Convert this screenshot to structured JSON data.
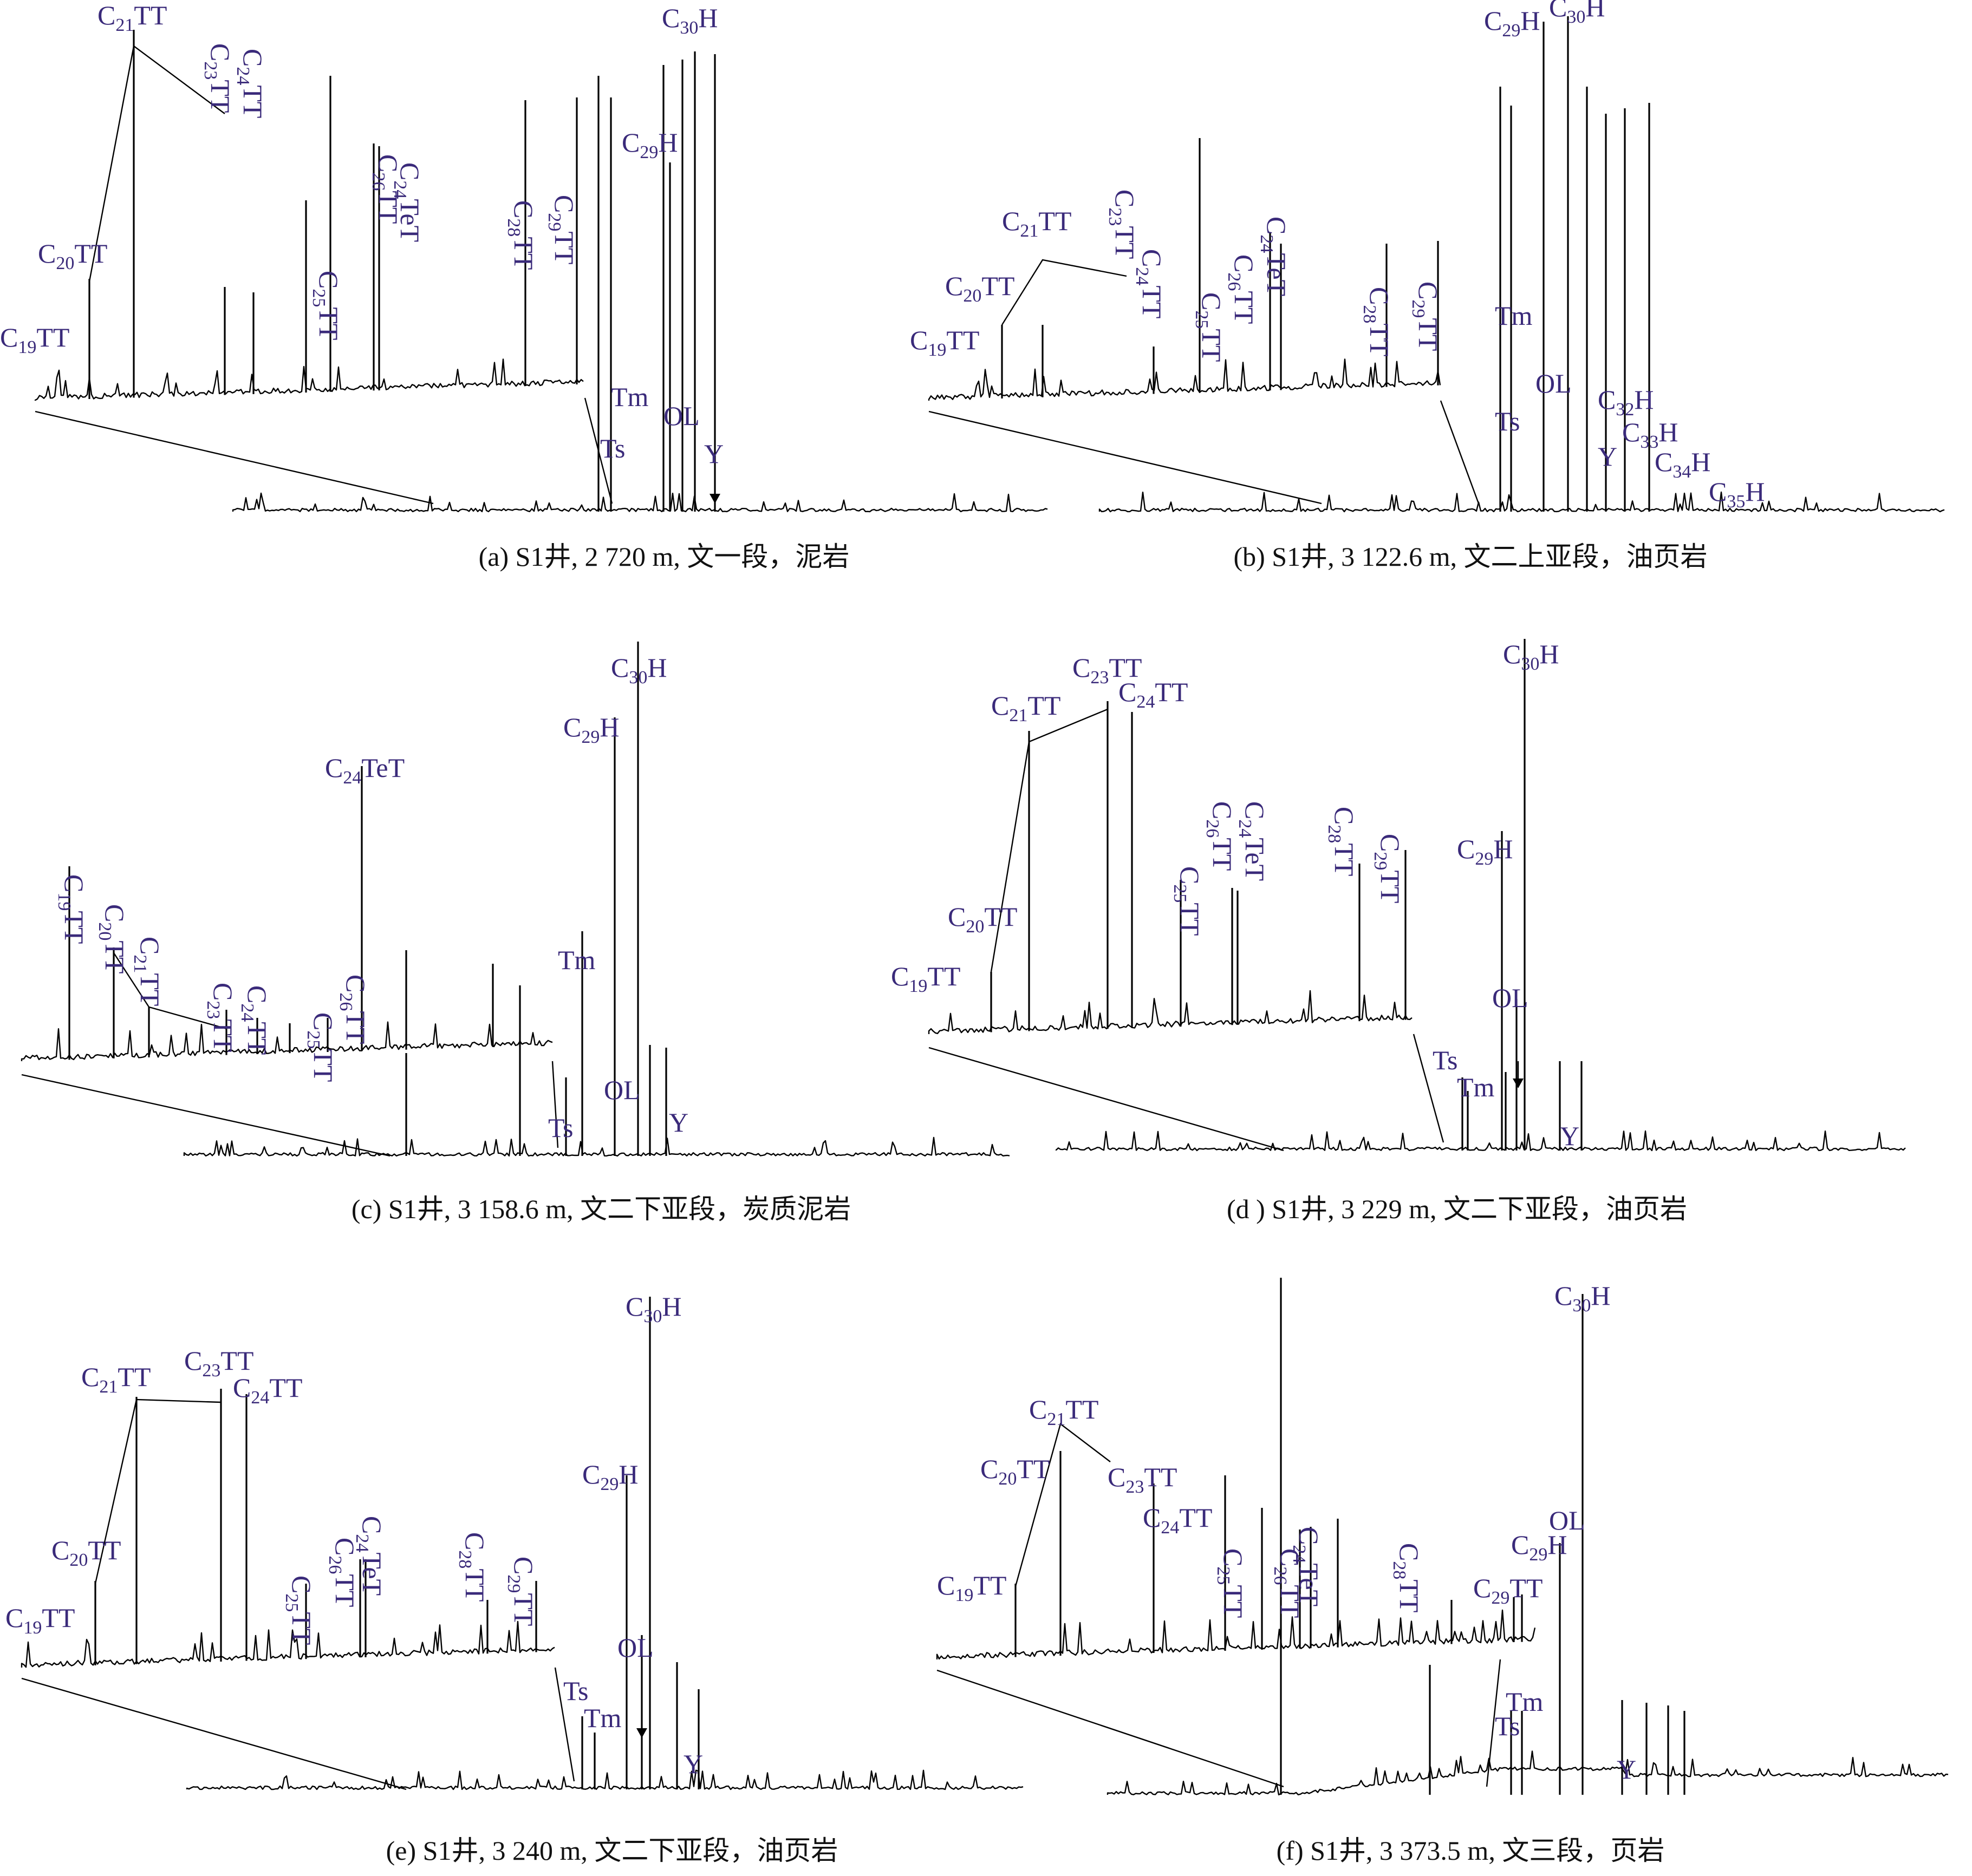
{
  "chart_data": [
    {
      "type": "line",
      "caption": "(a) S1井, 2 720 m, 文一段，泥岩",
      "series_labels": [
        {
          "base": "C",
          "sub": "19",
          "rest": "TT"
        },
        {
          "base": "C",
          "sub": "20",
          "rest": "TT"
        },
        {
          "base": "C",
          "sub": "21",
          "rest": "TT"
        },
        {
          "base": "C",
          "sub": "23",
          "rest": "TT"
        },
        {
          "base": "C",
          "sub": "24",
          "rest": "TT"
        },
        {
          "base": "C",
          "sub": "25",
          "rest": "TT"
        },
        {
          "base": "C",
          "sub": "26",
          "rest": "TT"
        },
        {
          "base": "C",
          "sub": "24",
          "rest": "TeT"
        },
        {
          "base": "C",
          "sub": "28",
          "rest": "TT"
        },
        {
          "base": "C",
          "sub": "29",
          "rest": "TT"
        }
      ],
      "main_labels": [
        {
          "base": "C",
          "sub": "30",
          "rest": "H"
        },
        {
          "base": "C",
          "sub": "29",
          "rest": "H"
        },
        {
          "base": "Tm",
          "sub": "",
          "rest": ""
        },
        {
          "base": "Ts",
          "sub": "",
          "rest": ""
        },
        {
          "base": "OL",
          "sub": "",
          "rest": ""
        },
        {
          "base": "Y",
          "sub": "",
          "rest": ""
        }
      ]
    },
    {
      "type": "line",
      "caption": "(b) S1井, 3 122.6 m, 文二上亚段，油页岩",
      "series_labels": [
        {
          "base": "C",
          "sub": "19",
          "rest": "TT"
        },
        {
          "base": "C",
          "sub": "20",
          "rest": "TT"
        },
        {
          "base": "C",
          "sub": "21",
          "rest": "TT"
        },
        {
          "base": "C",
          "sub": "23",
          "rest": "TT"
        },
        {
          "base": "C",
          "sub": "24",
          "rest": "TT"
        },
        {
          "base": "C",
          "sub": "25",
          "rest": "TT"
        },
        {
          "base": "C",
          "sub": "26",
          "rest": "TT"
        },
        {
          "base": "C",
          "sub": "24",
          "rest": "TeT"
        },
        {
          "base": "C",
          "sub": "28",
          "rest": "TT"
        },
        {
          "base": "C",
          "sub": "29",
          "rest": "TT"
        }
      ],
      "main_labels": [
        {
          "base": "C",
          "sub": "29",
          "rest": "H"
        },
        {
          "base": "C",
          "sub": "30",
          "rest": "H"
        },
        {
          "base": "Tm",
          "sub": "",
          "rest": ""
        },
        {
          "base": "Ts",
          "sub": "",
          "rest": ""
        },
        {
          "base": "OL",
          "sub": "",
          "rest": ""
        },
        {
          "base": "Y",
          "sub": "",
          "rest": ""
        },
        {
          "base": "C",
          "sub": "32",
          "rest": "H"
        },
        {
          "base": "C",
          "sub": "33",
          "rest": "H"
        },
        {
          "base": "C",
          "sub": "34",
          "rest": "H"
        },
        {
          "base": "C",
          "sub": "35",
          "rest": "H"
        }
      ]
    },
    {
      "type": "line",
      "caption": "(c) S1井, 3 158.6 m, 文二下亚段，炭质泥岩",
      "series_labels": [
        {
          "base": "C",
          "sub": "19",
          "rest": "TT"
        },
        {
          "base": "C",
          "sub": "20",
          "rest": "TT"
        },
        {
          "base": "C",
          "sub": "21",
          "rest": "TT"
        },
        {
          "base": "C",
          "sub": "23",
          "rest": "TT"
        },
        {
          "base": "C",
          "sub": "24",
          "rest": "TT"
        },
        {
          "base": "C",
          "sub": "25",
          "rest": "TT"
        },
        {
          "base": "C",
          "sub": "26",
          "rest": "TT"
        },
        {
          "base": "C",
          "sub": "24",
          "rest": "TeT"
        }
      ],
      "main_labels": [
        {
          "base": "C",
          "sub": "30",
          "rest": "H"
        },
        {
          "base": "C",
          "sub": "29",
          "rest": "H"
        },
        {
          "base": "Tm",
          "sub": "",
          "rest": ""
        },
        {
          "base": "Ts",
          "sub": "",
          "rest": ""
        },
        {
          "base": "OL",
          "sub": "",
          "rest": ""
        },
        {
          "base": "Y",
          "sub": "",
          "rest": ""
        }
      ]
    },
    {
      "type": "line",
      "caption": "(d ) S1井, 3 229 m, 文二下亚段，油页岩",
      "series_labels": [
        {
          "base": "C",
          "sub": "19",
          "rest": "TT"
        },
        {
          "base": "C",
          "sub": "20",
          "rest": "TT"
        },
        {
          "base": "C",
          "sub": "21",
          "rest": "TT"
        },
        {
          "base": "C",
          "sub": "23",
          "rest": "TT"
        },
        {
          "base": "C",
          "sub": "24",
          "rest": "TT"
        },
        {
          "base": "C",
          "sub": "25",
          "rest": "TT"
        },
        {
          "base": "C",
          "sub": "26",
          "rest": "TT"
        },
        {
          "base": "C",
          "sub": "24",
          "rest": "TeT"
        },
        {
          "base": "C",
          "sub": "28",
          "rest": "TT"
        },
        {
          "base": "C",
          "sub": "29",
          "rest": "TT"
        }
      ],
      "main_labels": [
        {
          "base": "C",
          "sub": "30",
          "rest": "H"
        },
        {
          "base": "C",
          "sub": "29",
          "rest": "H"
        },
        {
          "base": "OL",
          "sub": "",
          "rest": ""
        },
        {
          "base": "Ts",
          "sub": "",
          "rest": ""
        },
        {
          "base": "Tm",
          "sub": "",
          "rest": ""
        },
        {
          "base": "Y",
          "sub": "",
          "rest": ""
        }
      ]
    },
    {
      "type": "line",
      "caption": "(e) S1井, 3 240 m, 文二下亚段，油页岩",
      "series_labels": [
        {
          "base": "C",
          "sub": "19",
          "rest": "TT"
        },
        {
          "base": "C",
          "sub": "20",
          "rest": "TT"
        },
        {
          "base": "C",
          "sub": "21",
          "rest": "TT"
        },
        {
          "base": "C",
          "sub": "23",
          "rest": "TT"
        },
        {
          "base": "C",
          "sub": "24",
          "rest": "TT"
        },
        {
          "base": "C",
          "sub": "25",
          "rest": "TT"
        },
        {
          "base": "C",
          "sub": "26",
          "rest": "TT"
        },
        {
          "base": "C",
          "sub": "24",
          "rest": "TeT"
        },
        {
          "base": "C",
          "sub": "28",
          "rest": "TT"
        },
        {
          "base": "C",
          "sub": "29",
          "rest": "TT"
        }
      ],
      "main_labels": [
        {
          "base": "C",
          "sub": "30",
          "rest": "H"
        },
        {
          "base": "C",
          "sub": "29",
          "rest": "H"
        },
        {
          "base": "OL",
          "sub": "",
          "rest": ""
        },
        {
          "base": "Ts",
          "sub": "",
          "rest": ""
        },
        {
          "base": "Tm",
          "sub": "",
          "rest": ""
        },
        {
          "base": "Y",
          "sub": "",
          "rest": ""
        }
      ]
    },
    {
      "type": "line",
      "caption": "(f) S1井, 3 373.5 m, 文三段，页岩",
      "series_labels": [
        {
          "base": "C",
          "sub": "19",
          "rest": "TT"
        },
        {
          "base": "C",
          "sub": "20",
          "rest": "TT"
        },
        {
          "base": "C",
          "sub": "21",
          "rest": "TT"
        },
        {
          "base": "C",
          "sub": "23",
          "rest": "TT"
        },
        {
          "base": "C",
          "sub": "24",
          "rest": "TT"
        },
        {
          "base": "C",
          "sub": "25",
          "rest": "TT"
        },
        {
          "base": "C",
          "sub": "26",
          "rest": "TT"
        },
        {
          "base": "C",
          "sub": "24",
          "rest": "TeT"
        },
        {
          "base": "C",
          "sub": "28",
          "rest": "TT"
        },
        {
          "base": "C",
          "sub": "29",
          "rest": "TT"
        }
      ],
      "main_labels": [
        {
          "base": "C",
          "sub": "30",
          "rest": "H"
        },
        {
          "base": "OL",
          "sub": "",
          "rest": ""
        },
        {
          "base": "C",
          "sub": "29",
          "rest": "H"
        },
        {
          "base": "Tm",
          "sub": "",
          "rest": ""
        },
        {
          "base": "Ts",
          "sub": "",
          "rest": ""
        },
        {
          "base": "Y",
          "sub": "",
          "rest": ""
        }
      ]
    }
  ]
}
